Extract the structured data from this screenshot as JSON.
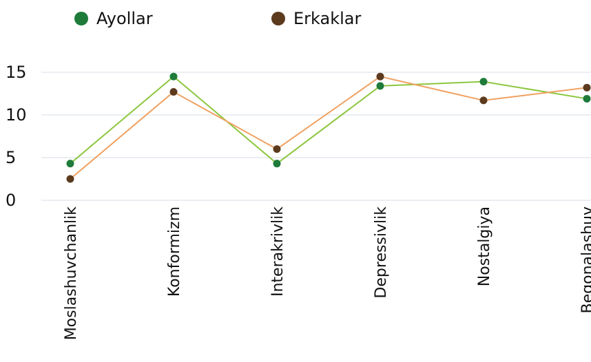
{
  "chart_data": {
    "type": "line",
    "categories": [
      "Moslashuvchanlik",
      "Konformizm",
      "Interakrivlik",
      "Depressivlik",
      "Nostalgiya",
      "Begonalashuv"
    ],
    "series": [
      {
        "name": "Ayollar",
        "color": "#1e7b3a",
        "line_color": "#8cc63f",
        "values": [
          4.3,
          14.5,
          4.3,
          13.4,
          13.9,
          11.9
        ]
      },
      {
        "name": "Erkaklar",
        "color": "#5c3a1e",
        "line_color": "#f0a060",
        "values": [
          2.5,
          12.7,
          6.0,
          14.5,
          11.7,
          13.2
        ]
      }
    ],
    "ylim": [
      0,
      15
    ],
    "yticks": [
      0,
      5,
      10,
      15
    ],
    "grid": true,
    "legend": "top"
  }
}
